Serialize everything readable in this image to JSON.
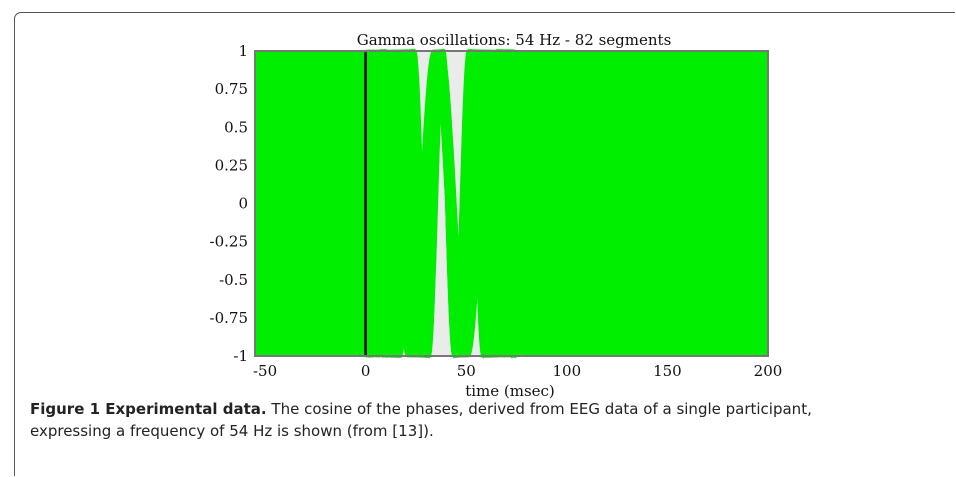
{
  "chart_data": {
    "type": "line",
    "title": "Gamma oscillations: 54 Hz - 82 segments",
    "xlabel": "time (msec)",
    "ylabel": "",
    "xlim": [
      -55,
      200
    ],
    "ylim": [
      -1,
      1
    ],
    "x_ticks": [
      -50,
      0,
      50,
      100,
      150,
      200
    ],
    "x_tick_labels": [
      "-50",
      "0",
      "50",
      "100",
      "150",
      "200"
    ],
    "y_ticks": [
      1,
      0.75,
      0.5,
      0.25,
      0,
      -0.25,
      -0.5,
      -0.75,
      -1
    ],
    "y_tick_labels": [
      "1",
      "0.75",
      "0.5",
      "0.25",
      "0",
      "-0.25",
      "-0.5",
      "-0.75",
      "-1"
    ],
    "frequency_hz": 54,
    "segments": 82,
    "stimulus_onset_ms": 0,
    "phase_locked_window_ms": [
      0,
      75
    ],
    "series": [
      {
        "color": "#00ee00"
      }
    ],
    "marker_line": {
      "x": 0,
      "color": "#000000"
    },
    "grid": false
  },
  "caption": {
    "label": "Figure 1 Experimental data.",
    "line1": "The cosine of the phases, derived from EEG data of a single participant,",
    "line2": "expressing a frequency of 54 Hz is shown (from [13])."
  }
}
